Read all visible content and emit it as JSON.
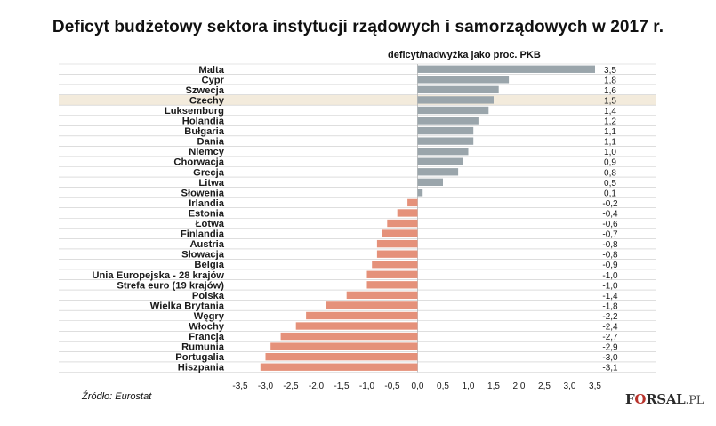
{
  "header": {
    "title": "Deficyt budżetowy sektora instytucji rządowych i samorządowych w 2017 r.",
    "subtitle": "deficyt/nadwyżka jako proc. PKB"
  },
  "footer": {
    "source": "Źródło:  Eurostat",
    "logo_prefix": "F",
    "logo_o": "O",
    "logo_mid": "RSAL",
    "logo_suffix": ".PL"
  },
  "colors": {
    "positive": "#9aa5ab",
    "negative": "#e5917a",
    "highlight": "#f3ebdc",
    "grid": "#c9c9c9"
  },
  "chart_data": {
    "type": "bar",
    "orientation": "horizontal",
    "title": "Deficyt budżetowy sektora instytucji rządowych i samorządowych w 2017 r.",
    "subtitle": "deficyt/nadwyżka jako proc. PKB",
    "xlim": [
      -3.5,
      3.5
    ],
    "x_ticks": [
      "-3,5",
      "-3,0",
      "-2,5",
      "-2,0",
      "-1,5",
      "-1,0",
      "-0,5",
      "0,0",
      "0,5",
      "1,0",
      "1,5",
      "2,0",
      "2,5",
      "3,0",
      "3,5"
    ],
    "highlighted_category": "Czechy",
    "categories": [
      "Malta",
      "Cypr",
      "Szwecja",
      "Czechy",
      "Luksemburg",
      "Holandia",
      "Bułgaria",
      "Dania",
      "Niemcy",
      "Chorwacja",
      "Grecja",
      "Litwa",
      "Słowenia",
      "Irlandia",
      "Estonia",
      "Łotwa",
      "Finlandia",
      "Austria",
      "Słowacja",
      "Belgia",
      "Unia Europejska - 28 krajów",
      "Strefa euro (19 krajów)",
      "Polska",
      "Wielka Brytania",
      "Węgry",
      "Włochy",
      "Francja",
      "Rumunia",
      "Portugalia",
      "Hiszpania"
    ],
    "values": [
      3.5,
      1.8,
      1.6,
      1.5,
      1.4,
      1.2,
      1.1,
      1.1,
      1.0,
      0.9,
      0.8,
      0.5,
      0.1,
      -0.2,
      -0.4,
      -0.6,
      -0.7,
      -0.8,
      -0.8,
      -0.9,
      -1.0,
      -1.0,
      -1.4,
      -1.8,
      -2.2,
      -2.4,
      -2.7,
      -2.9,
      -3.0,
      -3.1
    ],
    "value_labels": [
      "3,5",
      "1,8",
      "1,6",
      "1,5",
      "1,4",
      "1,2",
      "1,1",
      "1,1",
      "1,0",
      "0,9",
      "0,8",
      "0,5",
      "0,1",
      "-0,2",
      "-0,4",
      "-0,6",
      "-0,7",
      "-0,8",
      "-0,8",
      "-0,9",
      "-1,0",
      "-1,0",
      "-1,4",
      "-1,8",
      "-2,2",
      "-2,4",
      "-2,7",
      "-2,9",
      "-3,0",
      "-3,1"
    ]
  }
}
